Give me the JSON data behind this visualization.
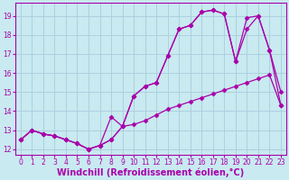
{
  "title": "",
  "xlabel": "Windchill (Refroidissement éolien,°C)",
  "ylabel": "",
  "bg_color": "#c8eaf0",
  "line_color": "#aa00aa",
  "grid_color": "#aaccdd",
  "xlim": [
    -0.5,
    23.5
  ],
  "ylim": [
    11.7,
    19.7
  ],
  "xticks": [
    0,
    1,
    2,
    3,
    4,
    5,
    6,
    7,
    8,
    9,
    10,
    11,
    12,
    13,
    14,
    15,
    16,
    17,
    18,
    19,
    20,
    21,
    22,
    23
  ],
  "yticks": [
    12,
    13,
    14,
    15,
    16,
    17,
    18,
    19
  ],
  "series1_x": [
    0,
    1,
    2,
    3,
    4,
    5,
    6,
    7,
    8,
    9,
    10,
    11,
    12,
    13,
    14,
    15,
    16,
    17,
    18,
    19,
    20,
    21,
    22,
    23
  ],
  "series1_y": [
    12.5,
    13.0,
    12.8,
    12.7,
    12.5,
    12.3,
    12.0,
    12.2,
    12.5,
    13.2,
    13.3,
    13.5,
    13.8,
    14.1,
    14.3,
    14.5,
    14.7,
    14.9,
    15.1,
    15.3,
    15.5,
    15.7,
    15.9,
    14.3
  ],
  "series2_x": [
    0,
    1,
    2,
    3,
    4,
    5,
    6,
    7,
    8,
    9,
    10,
    11,
    12,
    13,
    14,
    15,
    16,
    17,
    18,
    19,
    20,
    21,
    22,
    23
  ],
  "series2_y": [
    12.5,
    13.0,
    12.8,
    12.7,
    12.5,
    12.3,
    12.0,
    12.2,
    12.5,
    13.2,
    14.8,
    15.3,
    15.5,
    16.9,
    18.3,
    18.5,
    19.2,
    19.3,
    19.1,
    16.6,
    18.3,
    19.0,
    17.2,
    15.0
  ],
  "series3_x": [
    0,
    1,
    2,
    3,
    4,
    5,
    6,
    7,
    8,
    9,
    10,
    11,
    12,
    13,
    14,
    15,
    16,
    17,
    18,
    19,
    20,
    21,
    22,
    23
  ],
  "series3_y": [
    12.5,
    13.0,
    12.8,
    12.7,
    12.5,
    12.3,
    12.0,
    12.2,
    13.7,
    13.2,
    14.8,
    15.3,
    15.5,
    16.9,
    18.3,
    18.5,
    19.2,
    19.3,
    19.1,
    16.6,
    18.9,
    19.0,
    17.2,
    14.3
  ],
  "marker": "D",
  "marker_size": 2.5,
  "line_width": 0.9,
  "font_color": "#aa00aa",
  "tick_fontsize": 5.5,
  "xlabel_fontsize": 7.0
}
